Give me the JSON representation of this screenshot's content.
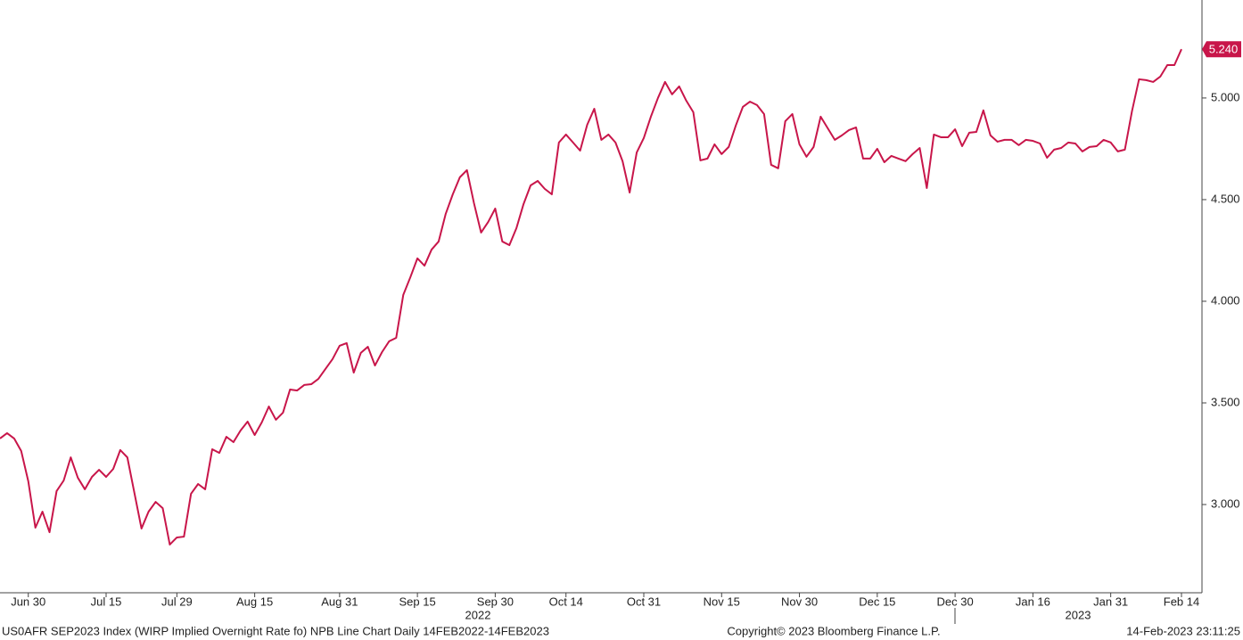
{
  "chart_data": {
    "type": "line",
    "color": "#c8164a",
    "ylim": [
      2.566,
      5.482
    ],
    "yticks": [
      {
        "value": 3,
        "label": "3.000"
      },
      {
        "value": 3.5,
        "label": "3.500"
      },
      {
        "value": 4,
        "label": "4.000"
      },
      {
        "value": 4.5,
        "label": "4.500"
      },
      {
        "value": 5,
        "label": "5.000"
      }
    ],
    "year_labels": [
      "2022",
      "2023"
    ],
    "footer_left": "US0AFR SEP2023 Index (WIRP Implied Overnight Rate fo) NPB Line Chart  Daily 14FEB2022-14FEB2023",
    "footer_center": "Copyright© 2023 Bloomberg Finance L.P.",
    "footer_right": "14-Feb-2023 23:11:25",
    "categories": [
      null,
      null,
      null,
      null,
      "Jun 30",
      null,
      null,
      null,
      null,
      null,
      null,
      null,
      null,
      null,
      null,
      "Jul 15",
      null,
      null,
      null,
      null,
      null,
      null,
      null,
      null,
      null,
      "Jul 29",
      null,
      null,
      null,
      null,
      null,
      null,
      null,
      null,
      null,
      null,
      "Aug 15",
      null,
      null,
      null,
      null,
      null,
      null,
      null,
      null,
      null,
      null,
      null,
      "Aug 31",
      null,
      null,
      null,
      null,
      null,
      null,
      null,
      null,
      null,
      null,
      "Sep 15",
      null,
      null,
      null,
      null,
      null,
      null,
      null,
      null,
      null,
      null,
      "Sep 30",
      null,
      null,
      null,
      null,
      null,
      null,
      null,
      null,
      null,
      "Oct 14",
      null,
      null,
      null,
      null,
      null,
      null,
      null,
      null,
      null,
      null,
      "Oct 31",
      null,
      null,
      null,
      null,
      null,
      null,
      null,
      null,
      null,
      null,
      "Nov 15",
      null,
      null,
      null,
      null,
      null,
      null,
      null,
      null,
      null,
      null,
      "Nov 30",
      null,
      null,
      null,
      null,
      null,
      null,
      null,
      null,
      null,
      null,
      "Dec 15",
      null,
      null,
      null,
      null,
      null,
      null,
      null,
      null,
      null,
      null,
      "Dec 30",
      null,
      null,
      null,
      null,
      null,
      null,
      null,
      null,
      null,
      null,
      "Jan 16",
      null,
      null,
      null,
      null,
      null,
      null,
      null,
      null,
      null,
      null,
      "Jan 31",
      null,
      null,
      null,
      null,
      null,
      null,
      null,
      null,
      null,
      "Feb 14"
    ],
    "values": [
      3.325,
      3.351,
      3.325,
      3.263,
      3.114,
      2.886,
      2.965,
      2.864,
      3.066,
      3.118,
      3.232,
      3.132,
      3.075,
      3.136,
      3.171,
      3.136,
      3.175,
      3.268,
      3.232,
      3.057,
      2.882,
      2.965,
      3.013,
      2.982,
      2.803,
      2.838,
      2.842,
      3.053,
      3.101,
      3.075,
      3.272,
      3.254,
      3.333,
      3.307,
      3.364,
      3.408,
      3.342,
      3.404,
      3.482,
      3.417,
      3.452,
      3.566,
      3.561,
      3.588,
      3.592,
      3.618,
      3.667,
      3.715,
      3.781,
      3.794,
      3.649,
      3.746,
      3.776,
      3.684,
      3.75,
      3.803,
      3.82,
      4.031,
      4.118,
      4.211,
      4.175,
      4.254,
      4.294,
      4.43,
      4.526,
      4.61,
      4.645,
      4.482,
      4.338,
      4.39,
      4.456,
      4.294,
      4.276,
      4.36,
      4.478,
      4.57,
      4.592,
      4.553,
      4.526,
      4.781,
      4.82,
      4.781,
      4.741,
      4.868,
      4.947,
      4.794,
      4.82,
      4.781,
      4.689,
      4.535,
      4.732,
      4.803,
      4.908,
      5.0,
      5.079,
      5.018,
      5.057,
      4.987,
      4.93,
      4.693,
      4.702,
      4.772,
      4.724,
      4.759,
      4.864,
      4.956,
      4.982,
      4.965,
      4.921,
      4.671,
      4.654,
      4.886,
      4.921,
      4.772,
      4.711,
      4.759,
      4.908,
      4.851,
      4.794,
      4.816,
      4.842,
      4.855,
      4.702,
      4.702,
      4.75,
      4.684,
      4.715,
      4.702,
      4.689,
      4.724,
      4.754,
      4.557,
      4.82,
      4.807,
      4.807,
      4.846,
      4.763,
      4.829,
      4.833,
      4.939,
      4.816,
      4.785,
      4.794,
      4.794,
      4.768,
      4.794,
      4.789,
      4.776,
      4.706,
      4.746,
      4.754,
      4.781,
      4.776,
      4.737,
      4.759,
      4.763,
      4.794,
      4.781,
      4.737,
      4.746,
      4.934,
      5.092,
      5.088,
      5.079,
      5.105,
      5.162,
      5.162,
      5.24
    ],
    "value_labels": [
      null,
      null,
      null,
      null,
      null,
      null,
      null,
      null,
      null,
      null,
      null,
      null,
      null,
      null,
      null,
      null,
      null,
      null,
      null,
      null,
      null,
      null,
      null,
      null,
      null,
      null,
      null,
      null,
      null,
      null,
      null,
      null,
      null,
      null,
      null,
      null,
      null,
      null,
      null,
      null,
      null,
      null,
      null,
      null,
      null,
      null,
      null,
      null,
      null,
      null,
      null,
      null,
      null,
      null,
      null,
      null,
      null,
      null,
      null,
      null,
      null,
      null,
      null,
      null,
      null,
      null,
      null,
      null,
      null,
      null,
      null,
      null,
      null,
      null,
      null,
      null,
      null,
      null,
      null,
      null,
      null,
      null,
      null,
      null,
      null,
      null,
      null,
      null,
      null,
      null,
      null,
      null,
      null,
      null,
      null,
      null,
      null,
      null,
      null,
      null,
      null,
      null,
      null,
      null,
      null,
      null,
      null,
      null,
      null,
      null,
      null,
      null,
      null,
      null,
      null,
      null,
      null,
      null,
      null,
      null,
      null,
      null,
      null,
      null,
      null,
      null,
      null,
      null,
      null,
      null,
      null,
      null,
      null,
      null,
      null,
      null,
      null,
      null,
      null,
      null,
      null,
      null,
      null,
      null,
      null,
      null,
      null,
      null,
      null,
      null,
      null,
      null,
      null,
      null,
      null,
      null,
      null,
      null,
      null,
      null,
      null,
      null,
      null,
      null,
      null,
      null,
      null,
      "5.240"
    ]
  }
}
